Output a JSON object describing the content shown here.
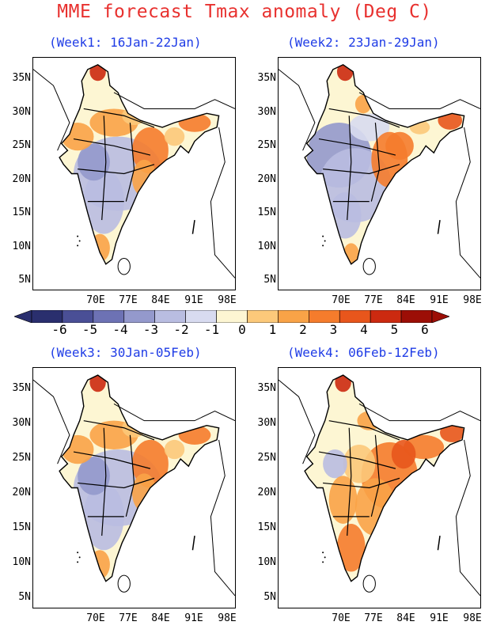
{
  "title": "MME forecast Tmax anomaly (Deg C)",
  "panels": [
    {
      "label": "(Week1: 16Jan-22Jan)",
      "pattern": "mixed-cool-center"
    },
    {
      "label": "(Week2: 23Jan-29Jan)",
      "pattern": "cool-west"
    },
    {
      "label": "(Week3: 30Jan-05Feb)",
      "pattern": "mixed-cool-center"
    },
    {
      "label": "(Week4: 06Feb-12Feb)",
      "pattern": "warm-east"
    }
  ],
  "y_ticks": [
    "35N",
    "30N",
    "25N",
    "20N",
    "15N",
    "10N",
    "5N"
  ],
  "x_ticks": [
    "70E",
    "77E",
    "84E",
    "91E",
    "98E"
  ],
  "colorbar": {
    "labels": [
      "-6",
      "-5",
      "-4",
      "-3",
      "-2",
      "-1",
      "0",
      "1",
      "2",
      "3",
      "4",
      "5",
      "6"
    ],
    "colors": [
      "#2a2f6e",
      "#4a4f96",
      "#6d72b4",
      "#9499cc",
      "#b9bde1",
      "#d8dbf0",
      "#fdf6d3",
      "#fcc97a",
      "#f9a347",
      "#f57c2c",
      "#e8561c",
      "#cc2a10",
      "#9c0e06"
    ]
  }
}
